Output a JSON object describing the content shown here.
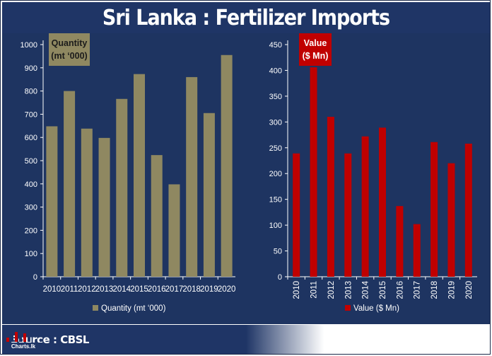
{
  "title": "Sri Lanka : Fertilizer Imports",
  "source": "Source : CBSL",
  "logo_text": "Charts.lk",
  "colors": {
    "navy": "#1e3461",
    "quantity_bar": "#8f8861",
    "value_bar": "#c00000",
    "text": "#ffffff",
    "grid": "#3a4f7a"
  },
  "chart_data": [
    {
      "type": "bar",
      "categories": [
        "2010",
        "2011",
        "2012",
        "2013",
        "2014",
        "2015",
        "2016",
        "2017",
        "2018",
        "2019",
        "2020"
      ],
      "series": [
        {
          "name": "Quantity (mt '000)",
          "values": [
            648,
            800,
            638,
            598,
            766,
            873,
            524,
            398,
            860,
            705,
            955
          ]
        }
      ],
      "box_label_line1": "Quantity",
      "box_label_line2": "(mt ‘000)",
      "legend": "Quantity (mt ‘000)",
      "ylim": [
        0,
        1000
      ],
      "yticks": [
        0,
        100,
        200,
        300,
        400,
        500,
        600,
        700,
        800,
        900,
        1000
      ],
      "x_label_rotation": "horizontal"
    },
    {
      "type": "bar",
      "categories": [
        "2010",
        "2011",
        "2012",
        "2013",
        "2014",
        "2015",
        "2016",
        "2017",
        "2018",
        "2019",
        "2020"
      ],
      "series": [
        {
          "name": "Value ($ Mn)",
          "values": [
            239,
            406,
            310,
            239,
            272,
            289,
            137,
            102,
            261,
            220,
            258
          ]
        }
      ],
      "box_label_line1": "Value",
      "box_label_line2": "($ Mn)",
      "legend": "Value ($ Mn)",
      "ylim": [
        0,
        450
      ],
      "yticks": [
        0,
        50,
        100,
        150,
        200,
        250,
        300,
        350,
        400,
        450
      ],
      "x_label_rotation": "vertical"
    }
  ]
}
